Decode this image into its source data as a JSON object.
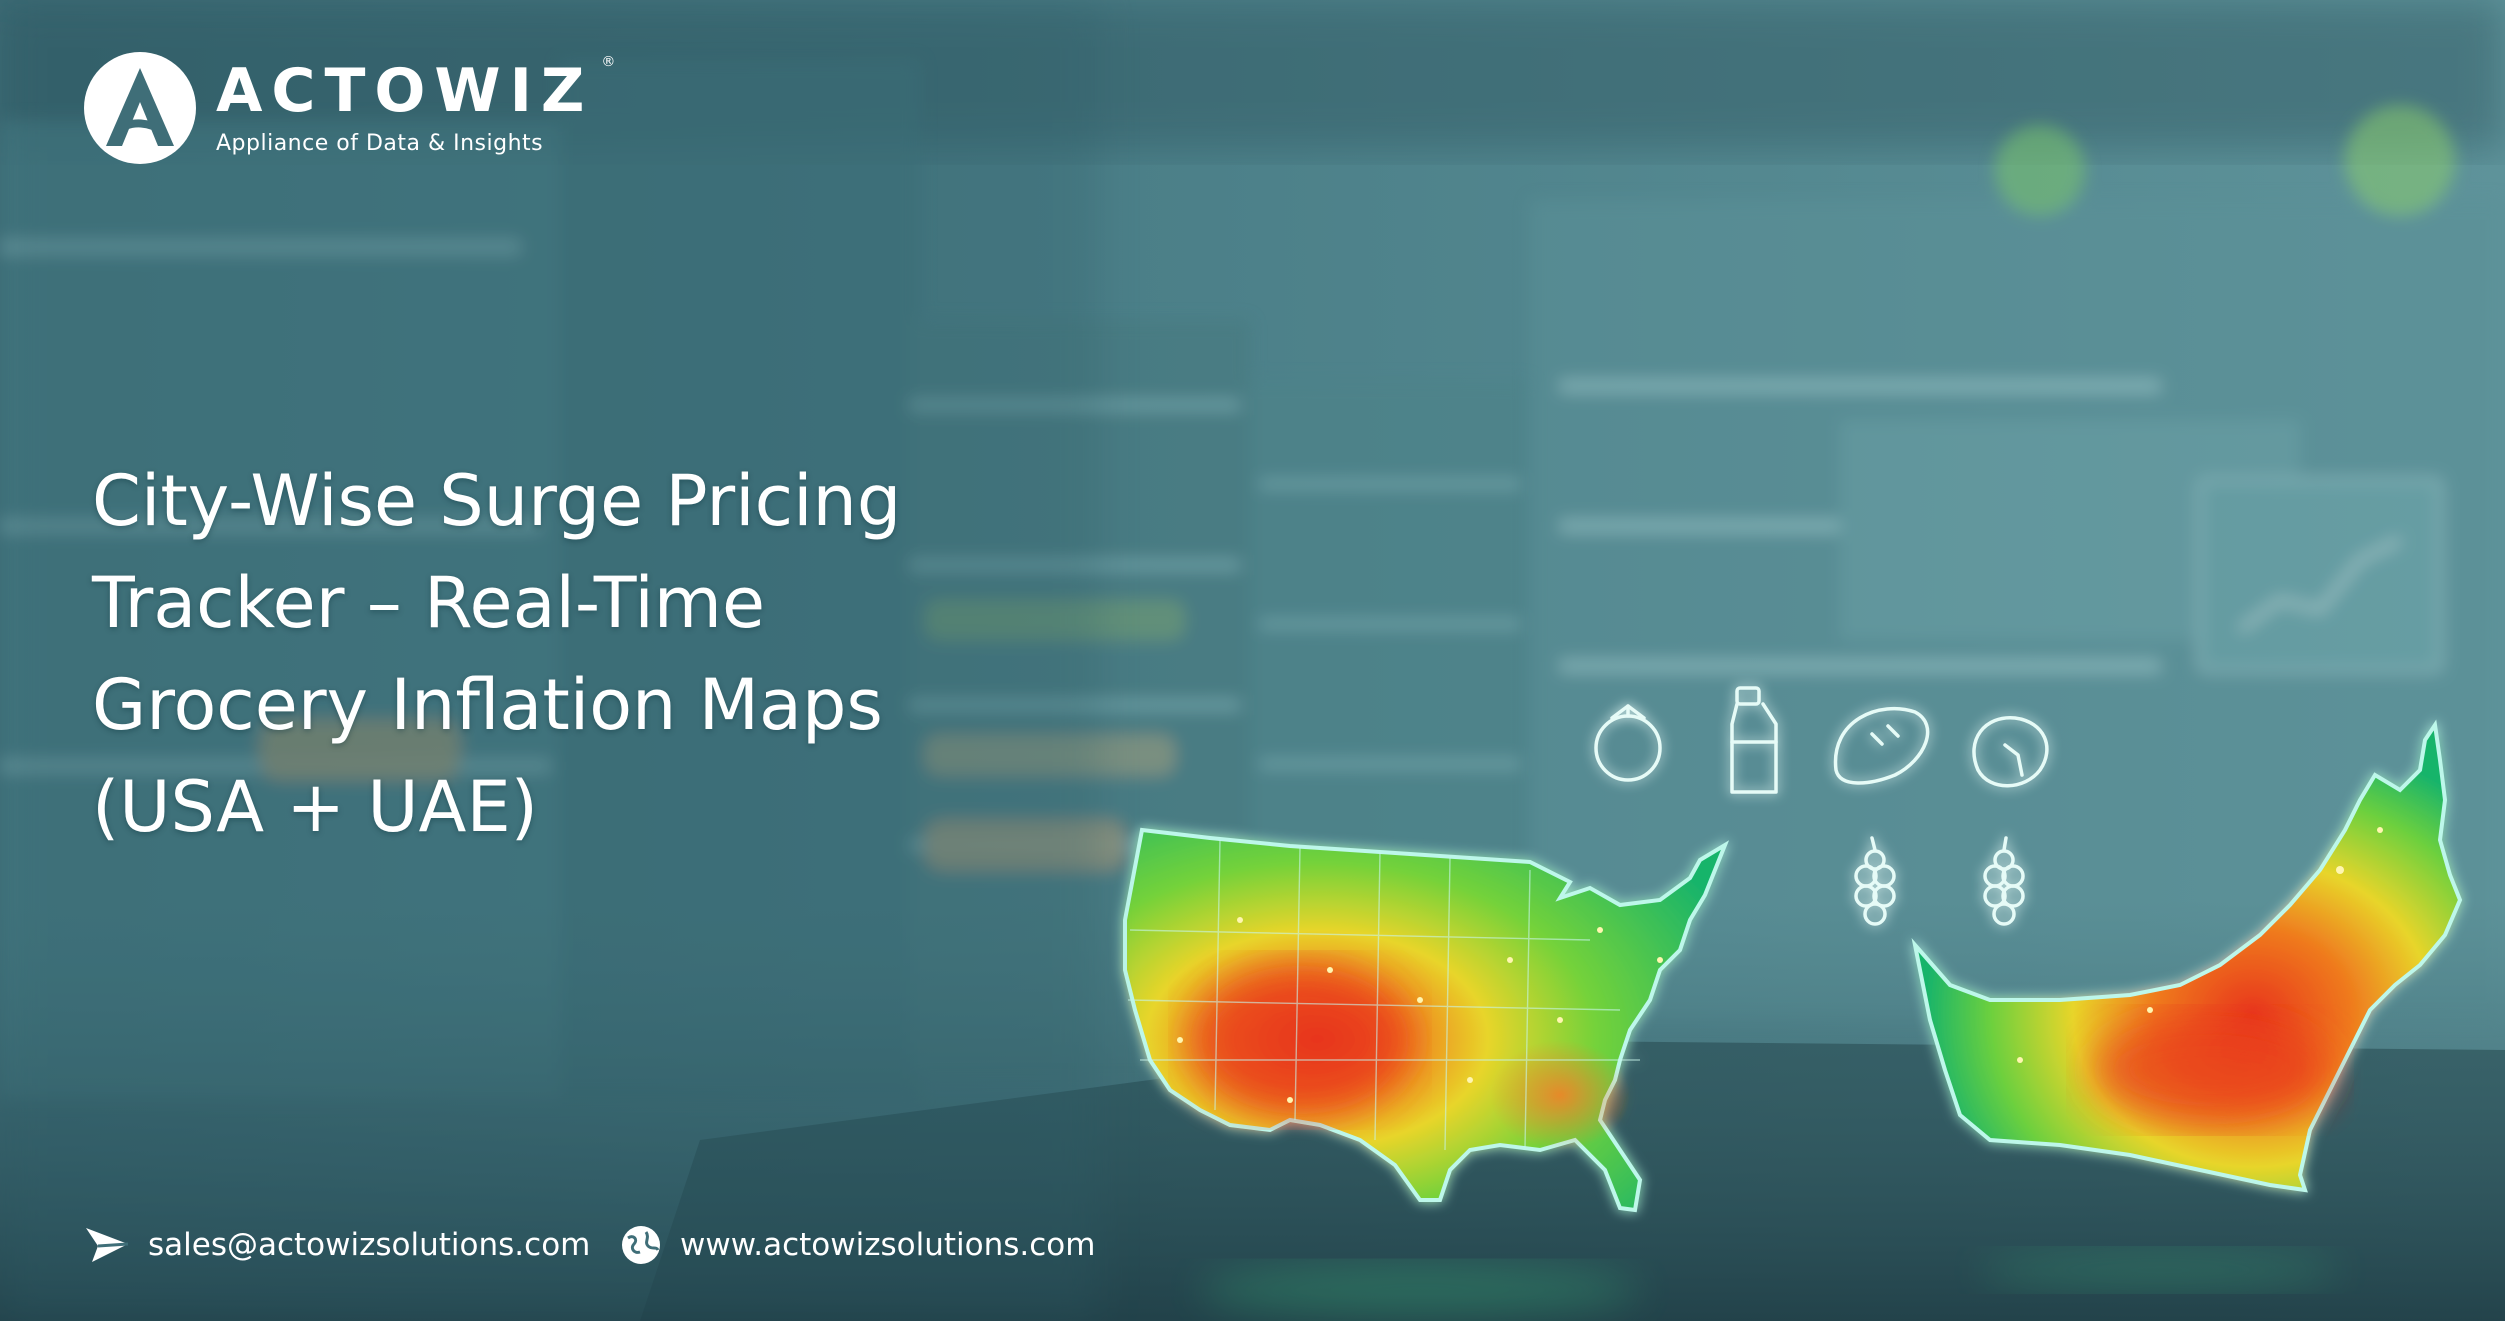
{
  "brand": {
    "name": "ACTOWIZ",
    "registered_mark": "®",
    "tagline": "Appliance of Data & Insights"
  },
  "headline": {
    "lines": [
      "City-Wise Surge Pricing",
      "Tracker – Real-Time",
      "Grocery Inflation Maps",
      "(USA + UAE)"
    ]
  },
  "contact": {
    "email": "sales@actowizsolutions.com",
    "website": "www.actowizsolutions.com"
  },
  "icons": {
    "grocery": [
      "tomato-icon",
      "bottle-icon",
      "bread-icon",
      "meat-icon",
      "grapes-icon",
      "grapes-icon"
    ],
    "email": "send-icon",
    "website": "globe-icon"
  },
  "colors": {
    "background": "#3f6e78",
    "text": "#ffffff",
    "heat_low": "#1fbf5a",
    "heat_mid": "#e8d52a",
    "heat_high": "#e8361a",
    "glow": "#8ff0e0"
  }
}
